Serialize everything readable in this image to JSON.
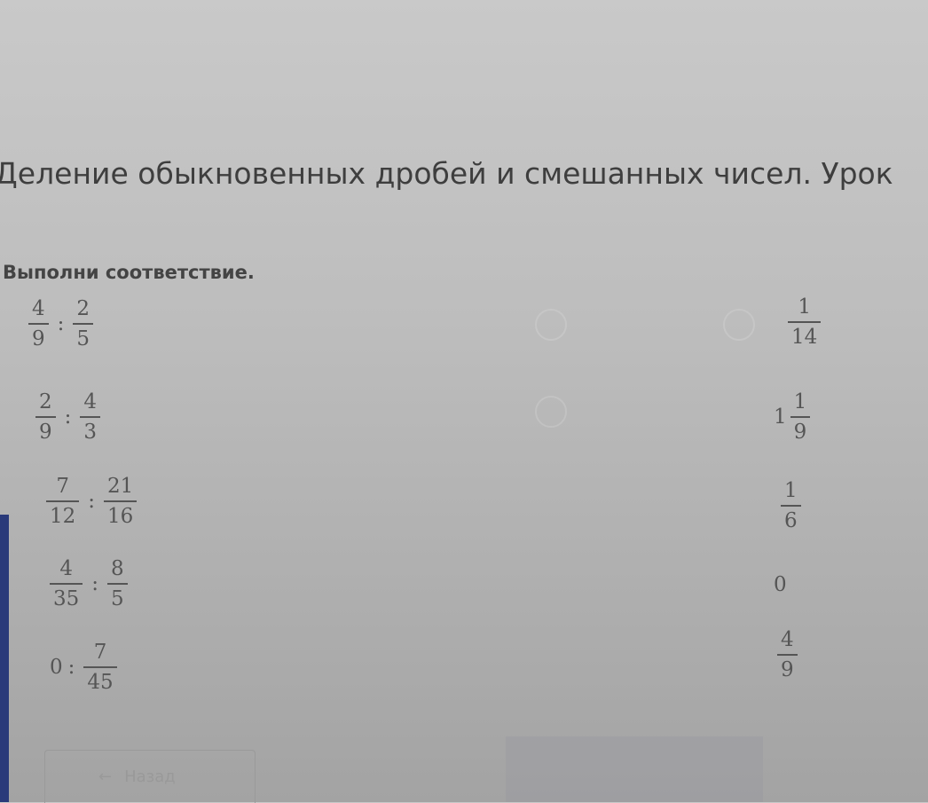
{
  "lesson_title": "Деление обыкновенных дробей и смешанных чисел. Урок",
  "instruction": "Выполни соответствие.",
  "operator": ":",
  "left_items": [
    {
      "a": {
        "n": "4",
        "d": "9"
      },
      "b": {
        "n": "2",
        "d": "5"
      }
    },
    {
      "a": {
        "n": "2",
        "d": "9"
      },
      "b": {
        "n": "4",
        "d": "3"
      }
    },
    {
      "a": {
        "n": "7",
        "d": "12"
      },
      "b": {
        "n": "21",
        "d": "16"
      }
    },
    {
      "a": {
        "n": "4",
        "d": "35"
      },
      "b": {
        "n": "8",
        "d": "5"
      }
    },
    {
      "a": {
        "whole": "0"
      },
      "b": {
        "n": "7",
        "d": "45"
      }
    }
  ],
  "right_items": [
    {
      "n": "1",
      "d": "14"
    },
    {
      "whole": "1",
      "n": "1",
      "d": "9"
    },
    {
      "n": "1",
      "d": "6"
    },
    {
      "whole": "0"
    },
    {
      "n": "4",
      "d": "9"
    }
  ],
  "back_button": {
    "icon": "arrow-left-icon",
    "label": "Назад"
  }
}
